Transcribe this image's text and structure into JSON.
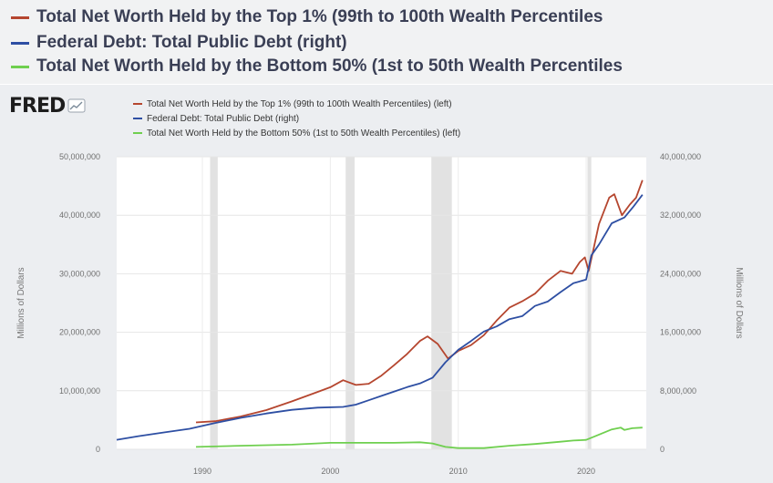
{
  "header_legend": [
    {
      "label": "Total Net Worth Held by the Top 1% (99th to 100th Wealth Percentiles",
      "color": "#b5462f"
    },
    {
      "label": "Federal Debt: Total Public Debt (right)",
      "color": "#2e4fa3"
    },
    {
      "label": "Total Net Worth Held by the Bottom 50% (1st to 50th Wealth Percentiles",
      "color": "#6fcf4f"
    }
  ],
  "logo": {
    "text": "FRED",
    "mark_icon": "line-chart-icon"
  },
  "chart_data": {
    "type": "line",
    "legend": [
      {
        "label": "Total Net Worth Held by the Top 1% (99th to 100th Wealth Percentiles) (left)",
        "color": "#b5462f"
      },
      {
        "label": "Federal Debt: Total Public Debt (right)",
        "color": "#2e4fa3"
      },
      {
        "label": "Total Net Worth Held by the Bottom 50% (1st to 50th Wealth Percentiles) (left)",
        "color": "#6fcf4f"
      }
    ],
    "ylabel_left": "Millions of Dollars",
    "ylabel_right": "Millions of Dollars",
    "xlim": [
      1983.3,
      2024.7
    ],
    "ylim_left": [
      0,
      50000000
    ],
    "ylim_right": [
      0,
      40000000
    ],
    "x_ticks": [
      1990,
      2000,
      2010,
      2020
    ],
    "x_tick_labels": [
      "1990",
      "2000",
      "2010",
      "2020"
    ],
    "y_ticks_left": [
      0,
      10000000,
      20000000,
      30000000,
      40000000,
      50000000
    ],
    "y_tick_labels_left": [
      "0",
      "10,000,000",
      "20,000,000",
      "30,000,000",
      "40,000,000",
      "50,000,000"
    ],
    "y_ticks_right": [
      0,
      8000000,
      16000000,
      24000000,
      32000000,
      40000000
    ],
    "y_tick_labels_right": [
      "0",
      "8,000,000",
      "16,000,000",
      "24,000,000",
      "32,000,000",
      "40,000,000"
    ],
    "grid": true,
    "recessions": [
      [
        1990.6,
        1991.2
      ],
      [
        2001.2,
        2001.9
      ],
      [
        2007.9,
        2009.5
      ],
      [
        2020.1,
        2020.4
      ]
    ],
    "series": [
      {
        "name": "Top 1% net worth",
        "axis": "left",
        "color": "#b5462f",
        "points": [
          [
            1989.5,
            4600000.0
          ],
          [
            1991,
            4800000.0
          ],
          [
            1993,
            5600000.0
          ],
          [
            1995,
            6700000.0
          ],
          [
            1997,
            8200000.0
          ],
          [
            1999,
            9800000.0
          ],
          [
            2000,
            10600000.0
          ],
          [
            2001,
            11800000.0
          ],
          [
            2002,
            11000000.0
          ],
          [
            2003,
            11200000.0
          ],
          [
            2004,
            12600000.0
          ],
          [
            2005,
            14400000.0
          ],
          [
            2006,
            16300000.0
          ],
          [
            2007,
            18500000.0
          ],
          [
            2007.6,
            19300000.0
          ],
          [
            2008.4,
            18000000.0
          ],
          [
            2009.2,
            15500000.0
          ],
          [
            2010,
            16800000.0
          ],
          [
            2011,
            17800000.0
          ],
          [
            2012,
            19500000.0
          ],
          [
            2013,
            22000000.0
          ],
          [
            2014,
            24200000.0
          ],
          [
            2015,
            25300000.0
          ],
          [
            2016,
            26600000.0
          ],
          [
            2017,
            28800000.0
          ],
          [
            2018,
            30500000.0
          ],
          [
            2018.9,
            30000000.0
          ],
          [
            2019.5,
            32000000.0
          ],
          [
            2019.9,
            32800000.0
          ],
          [
            2020.2,
            30500000.0
          ],
          [
            2020.6,
            34500000.0
          ],
          [
            2021,
            38500000.0
          ],
          [
            2021.8,
            43000000.0
          ],
          [
            2022.2,
            43600000.0
          ],
          [
            2022.8,
            40000000.0
          ],
          [
            2023.4,
            41800000.0
          ],
          [
            2023.9,
            43000000.0
          ],
          [
            2024.4,
            46000000.0
          ]
        ]
      },
      {
        "name": "Federal Debt: Total Public Debt",
        "axis": "right",
        "color": "#2e4fa3",
        "points": [
          [
            1983.3,
            1300000.0
          ],
          [
            1985,
            1800000.0
          ],
          [
            1987,
            2300000.0
          ],
          [
            1989,
            2800000.0
          ],
          [
            1991,
            3600000.0
          ],
          [
            1993,
            4300000.0
          ],
          [
            1995,
            4900000.0
          ],
          [
            1997,
            5400000.0
          ],
          [
            1999,
            5700000.0
          ],
          [
            2001,
            5800000.0
          ],
          [
            2002,
            6100000.0
          ],
          [
            2003,
            6700000.0
          ],
          [
            2004,
            7300000.0
          ],
          [
            2005,
            7900000.0
          ],
          [
            2006,
            8500000.0
          ],
          [
            2007,
            9000000.0
          ],
          [
            2008,
            9800000.0
          ],
          [
            2009,
            11900000.0
          ],
          [
            2010,
            13600000.0
          ],
          [
            2011,
            14800000.0
          ],
          [
            2012,
            16100000.0
          ],
          [
            2013,
            16800000.0
          ],
          [
            2014,
            17800000.0
          ],
          [
            2015,
            18200000.0
          ],
          [
            2016,
            19600000.0
          ],
          [
            2017,
            20200000.0
          ],
          [
            2018,
            21500000.0
          ],
          [
            2019,
            22700000.0
          ],
          [
            2020,
            23200000.0
          ],
          [
            2020.4,
            26500000.0
          ],
          [
            2021,
            28000000.0
          ],
          [
            2022,
            30900000.0
          ],
          [
            2023,
            31700000.0
          ],
          [
            2023.7,
            33200000.0
          ],
          [
            2024.4,
            34800000.0
          ]
        ]
      },
      {
        "name": "Bottom 50% net worth",
        "axis": "left",
        "color": "#6fcf4f",
        "points": [
          [
            1989.5,
            400000.0
          ],
          [
            1993,
            600000.0
          ],
          [
            1997,
            800000.0
          ],
          [
            2000,
            1100000.0
          ],
          [
            2002,
            1100000.0
          ],
          [
            2005,
            1100000.0
          ],
          [
            2007,
            1200000.0
          ],
          [
            2008,
            1000000.0
          ],
          [
            2009,
            400000.0
          ],
          [
            2010,
            200000.0
          ],
          [
            2012,
            200000.0
          ],
          [
            2014,
            600000.0
          ],
          [
            2016,
            900000.0
          ],
          [
            2018,
            1300000.0
          ],
          [
            2019,
            1500000.0
          ],
          [
            2020,
            1600000.0
          ],
          [
            2021,
            2500000.0
          ],
          [
            2022,
            3400000.0
          ],
          [
            2022.7,
            3700000.0
          ],
          [
            2023,
            3300000.0
          ],
          [
            2023.6,
            3600000.0
          ],
          [
            2024.4,
            3700000.0
          ]
        ]
      }
    ]
  }
}
